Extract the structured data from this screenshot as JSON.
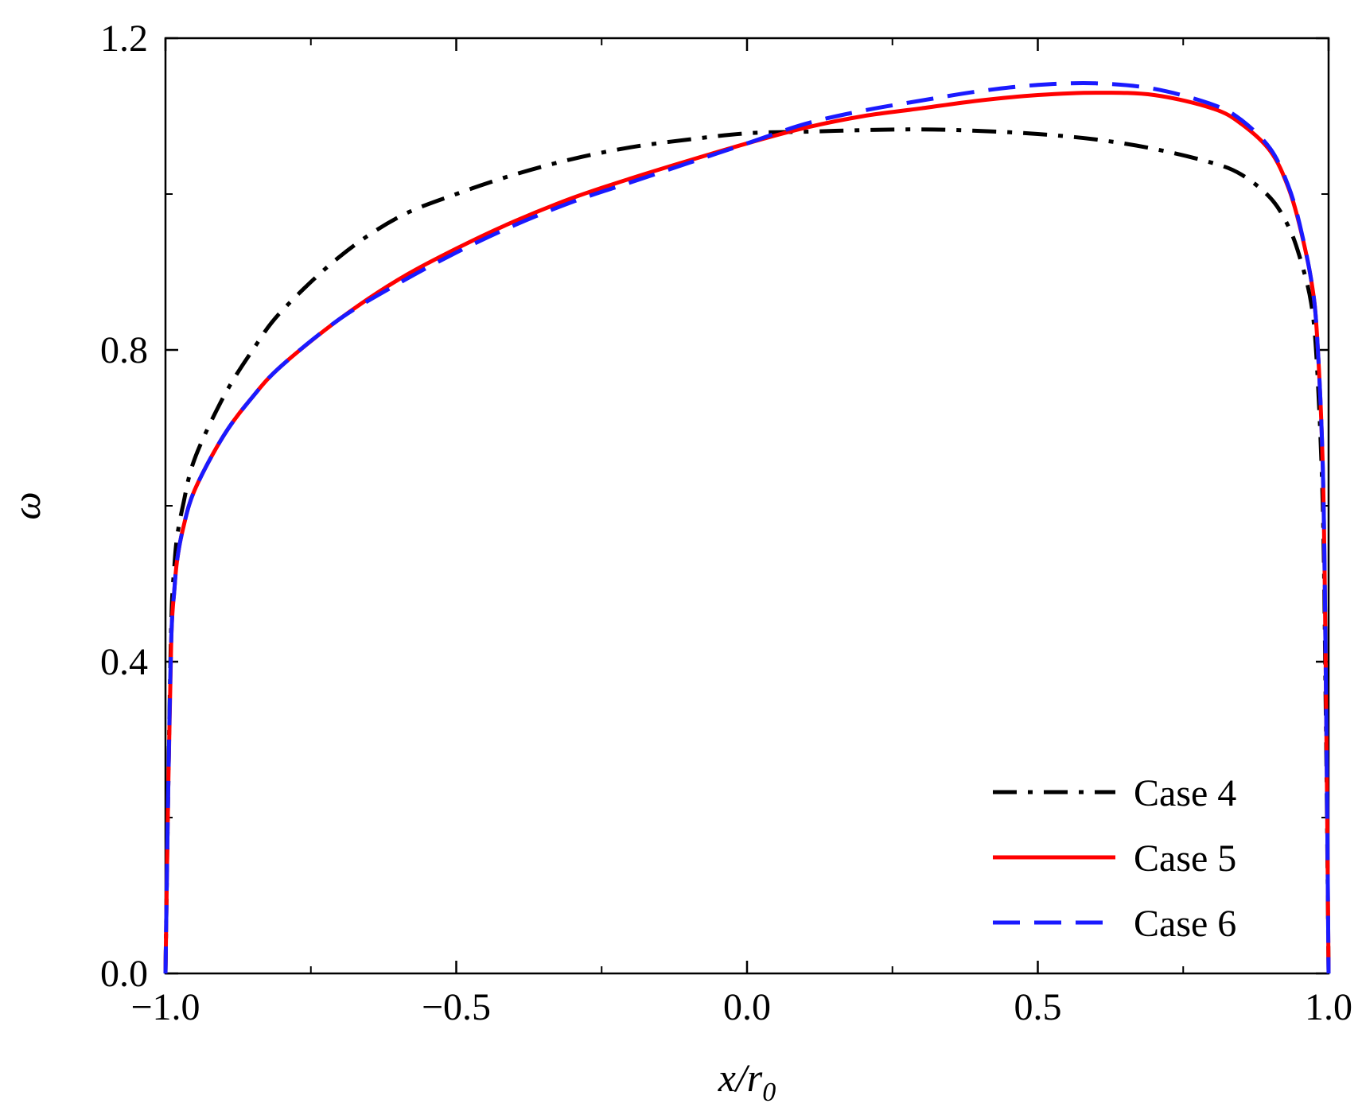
{
  "chart_data": {
    "type": "line",
    "xlabel": "x/r",
    "xlabel_sub": "0",
    "ylabel": "ω",
    "xlim": [
      -1.0,
      1.0
    ],
    "ylim": [
      0.0,
      1.2
    ],
    "x_major_ticks": [
      -1.0,
      -0.5,
      0.0,
      0.5,
      1.0
    ],
    "x_tick_labels": [
      "−1.0",
      "−0.5",
      "0.0",
      "0.5",
      "1.0"
    ],
    "x_minor_ticks": [
      -0.75,
      -0.25,
      0.25,
      0.75
    ],
    "y_major_ticks": [
      0.0,
      0.4,
      0.8,
      1.2
    ],
    "y_tick_labels": [
      "0.0",
      "0.4",
      "0.8",
      "1.2"
    ],
    "y_minor_ticks": [
      0.2,
      0.6,
      1.0
    ],
    "grid": false,
    "legend_position": "bottom-right",
    "series": [
      {
        "name": "Case 4",
        "color": "#000000",
        "style": "dashdot",
        "x": [
          -1.0,
          -0.995,
          -0.99,
          -0.985,
          -0.98,
          -0.97,
          -0.95,
          -0.9,
          -0.85,
          -0.8,
          -0.7,
          -0.6,
          -0.5,
          -0.4,
          -0.3,
          -0.2,
          -0.1,
          0.0,
          0.1,
          0.2,
          0.3,
          0.4,
          0.5,
          0.6,
          0.7,
          0.8,
          0.85,
          0.9,
          0.93,
          0.95,
          0.97,
          0.98,
          0.99,
          0.995,
          1.0
        ],
        "y": [
          0.0,
          0.25,
          0.45,
          0.52,
          0.56,
          0.6,
          0.66,
          0.74,
          0.8,
          0.85,
          0.92,
          0.97,
          1.0,
          1.025,
          1.045,
          1.06,
          1.07,
          1.078,
          1.08,
          1.082,
          1.083,
          1.081,
          1.077,
          1.07,
          1.058,
          1.04,
          1.025,
          0.995,
          0.96,
          0.92,
          0.86,
          0.78,
          0.6,
          0.35,
          0.0
        ]
      },
      {
        "name": "Case 5",
        "color": "#ff0000",
        "style": "solid",
        "x": [
          -1.0,
          -0.995,
          -0.99,
          -0.985,
          -0.98,
          -0.97,
          -0.95,
          -0.9,
          -0.85,
          -0.8,
          -0.7,
          -0.6,
          -0.5,
          -0.4,
          -0.3,
          -0.2,
          -0.1,
          0.0,
          0.1,
          0.2,
          0.3,
          0.4,
          0.5,
          0.6,
          0.7,
          0.8,
          0.85,
          0.9,
          0.93,
          0.95,
          0.97,
          0.98,
          0.99,
          0.995,
          1.0
        ],
        "y": [
          0.0,
          0.25,
          0.43,
          0.49,
          0.53,
          0.57,
          0.62,
          0.69,
          0.74,
          0.78,
          0.84,
          0.89,
          0.93,
          0.965,
          0.995,
          1.02,
          1.043,
          1.065,
          1.085,
          1.1,
          1.11,
          1.12,
          1.127,
          1.13,
          1.127,
          1.11,
          1.09,
          1.055,
          1.01,
          0.96,
          0.89,
          0.82,
          0.65,
          0.4,
          0.0
        ]
      },
      {
        "name": "Case 6",
        "color": "#1a1aff",
        "style": "dashed",
        "x": [
          -1.0,
          -0.995,
          -0.99,
          -0.985,
          -0.98,
          -0.97,
          -0.95,
          -0.9,
          -0.85,
          -0.8,
          -0.7,
          -0.6,
          -0.5,
          -0.4,
          -0.3,
          -0.2,
          -0.1,
          0.0,
          0.1,
          0.2,
          0.3,
          0.4,
          0.5,
          0.6,
          0.7,
          0.8,
          0.85,
          0.9,
          0.93,
          0.95,
          0.97,
          0.98,
          0.99,
          0.995,
          1.0
        ],
        "y": [
          0.0,
          0.25,
          0.43,
          0.49,
          0.53,
          0.57,
          0.62,
          0.69,
          0.74,
          0.78,
          0.84,
          0.885,
          0.925,
          0.96,
          0.99,
          1.015,
          1.04,
          1.065,
          1.09,
          1.107,
          1.12,
          1.132,
          1.14,
          1.142,
          1.135,
          1.115,
          1.095,
          1.058,
          1.012,
          0.962,
          0.89,
          0.82,
          0.65,
          0.4,
          0.0
        ]
      }
    ]
  }
}
